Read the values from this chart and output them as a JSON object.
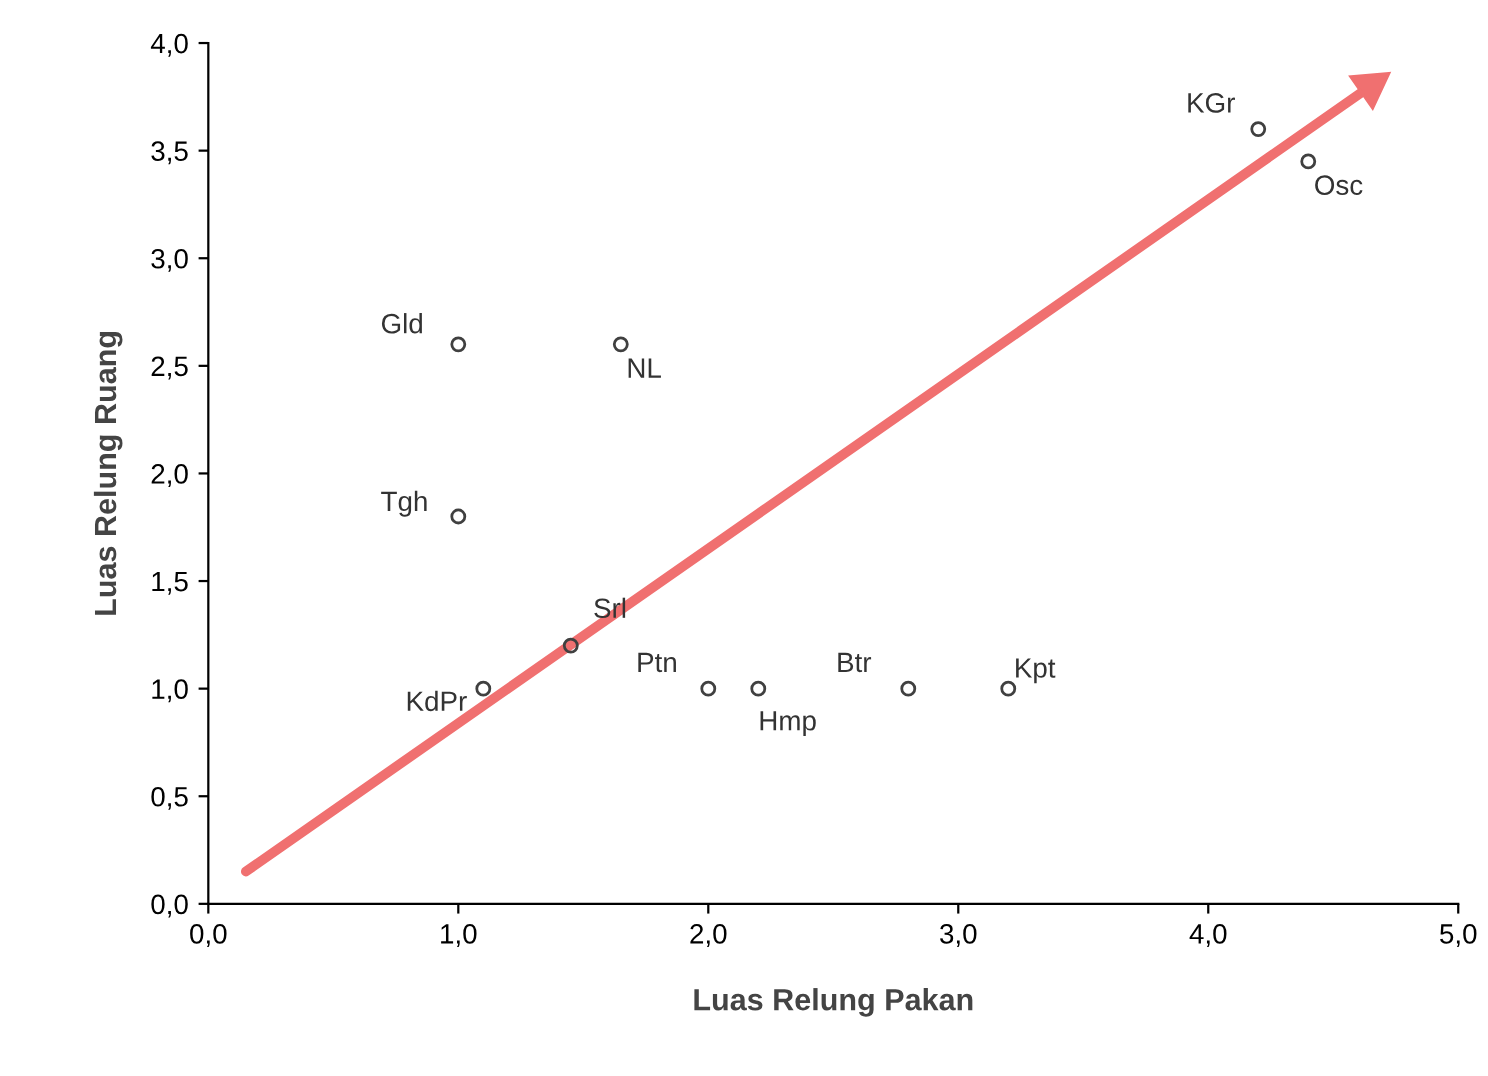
{
  "chart_data": {
    "type": "scatter",
    "xlabel": "Luas Relung Pakan",
    "ylabel": "Luas Relung Ruang",
    "xlim": [
      0,
      5
    ],
    "ylim": [
      0,
      4
    ],
    "xticks": [
      {
        "value": 0,
        "label": "0,0"
      },
      {
        "value": 1,
        "label": "1,0"
      },
      {
        "value": 2,
        "label": "2,0"
      },
      {
        "value": 3,
        "label": "3,0"
      },
      {
        "value": 4,
        "label": "4,0"
      },
      {
        "value": 5,
        "label": "5,0"
      }
    ],
    "yticks": [
      {
        "value": 0,
        "label": "0,0"
      },
      {
        "value": 0.5,
        "label": "0,5"
      },
      {
        "value": 1,
        "label": "1,0"
      },
      {
        "value": 1.5,
        "label": "1,5"
      },
      {
        "value": 2,
        "label": "2,0"
      },
      {
        "value": 2.5,
        "label": "2,5"
      },
      {
        "value": 3,
        "label": "3,0"
      },
      {
        "value": 3.5,
        "label": "3,5"
      },
      {
        "value": 4,
        "label": "4,0"
      }
    ],
    "grid": false,
    "marker": "circle",
    "series": [
      {
        "color": "#404040",
        "x": [
          1.0,
          1.65,
          1.0,
          1.1,
          1.45,
          2.0,
          2.2,
          2.8,
          3.2,
          4.2,
          4.4
        ],
        "values": [
          2.6,
          2.6,
          1.8,
          1.0,
          1.2,
          1.0,
          1.0,
          1.0,
          1.0,
          3.6,
          3.45
        ]
      },
      {
        "type": "line",
        "marker": "triangle",
        "color": "#f07070",
        "x": [
          0.15,
          4.65
        ],
        "values": [
          0.15,
          3.8
        ]
      }
    ],
    "annotations": [
      {
        "text": "Gld",
        "x": 1.0,
        "y": 2.6
      },
      {
        "text": "NL",
        "x": 1.65,
        "y": 2.6
      },
      {
        "text": "Tgh",
        "x": 1.0,
        "y": 1.8
      },
      {
        "text": "KdPr",
        "x": 1.1,
        "y": 1.0
      },
      {
        "text": "Srl",
        "x": 1.45,
        "y": 1.2
      },
      {
        "text": "Ptn",
        "x": 2.0,
        "y": 1.0
      },
      {
        "text": "Hmp",
        "x": 2.2,
        "y": 1.0
      },
      {
        "text": "Btr",
        "x": 2.8,
        "y": 1.0
      },
      {
        "text": "Kpt",
        "x": 3.2,
        "y": 1.0
      },
      {
        "text": "KGr",
        "x": 4.2,
        "y": 3.6
      },
      {
        "text": "Osc",
        "x": 4.4,
        "y": 3.45
      }
    ]
  }
}
